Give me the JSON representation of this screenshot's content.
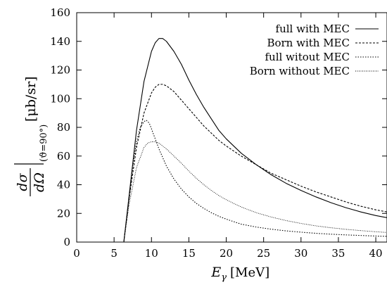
{
  "chart_data": {
    "type": "line",
    "xlabel": {
      "symbol": "E",
      "subscript": "γ",
      "unit": "[MeV]"
    },
    "ylabel": {
      "numerator": "dσ",
      "denominator": "dΩ",
      "subscript": "(ϑ=90°)",
      "unit": "[μb/sr]"
    },
    "xlim": [
      0,
      41.5
    ],
    "ylim": [
      0,
      160
    ],
    "xticks": [
      "0",
      "5",
      "10",
      "15",
      "20",
      "25",
      "30",
      "35",
      "40"
    ],
    "yticks": [
      "0",
      "20",
      "40",
      "60",
      "80",
      "100",
      "120",
      "140",
      "160"
    ],
    "grid": false,
    "legend_position": "top-right",
    "series": [
      {
        "name": "full with MEC",
        "style": "solid",
        "x": [
          6.3,
          7,
          8,
          9,
          10,
          10.5,
          11,
          11.5,
          12,
          13,
          14,
          15,
          16,
          17,
          18,
          19,
          20,
          22,
          24,
          26,
          28,
          30,
          32,
          34,
          36,
          38,
          40,
          41.5
        ],
        "y": [
          0,
          32,
          78,
          112,
          133,
          139,
          142,
          142,
          140,
          133,
          124,
          113,
          103,
          94,
          86,
          78,
          72,
          62,
          54,
          47,
          41,
          36,
          31.5,
          27.5,
          24,
          21,
          18.5,
          17
        ]
      },
      {
        "name": "Born with MEC",
        "style": "dashed",
        "x": [
          6.3,
          7,
          8,
          9,
          10,
          10.5,
          11,
          11.5,
          12,
          13,
          14,
          15,
          16,
          17,
          18,
          19,
          20,
          22,
          24,
          26,
          28,
          30,
          32,
          34,
          36,
          38,
          40,
          41.5
        ],
        "y": [
          0,
          30,
          66,
          90,
          104,
          108,
          110,
          110,
          109,
          105,
          99,
          93,
          87,
          81,
          76,
          71,
          67,
          60,
          54,
          48,
          43.5,
          39,
          35,
          31.5,
          28,
          25,
          22.5,
          21
        ]
      },
      {
        "name": "full witout MEC",
        "style": "dotted",
        "x": [
          6.3,
          7,
          7.5,
          8,
          8.5,
          9,
          9.3,
          9.7,
          10,
          10.5,
          11,
          12,
          13,
          14,
          15,
          16,
          17,
          18,
          19,
          20,
          22,
          24,
          26,
          28,
          30,
          32,
          34,
          36,
          38,
          40,
          41.5
        ],
        "y": [
          0,
          30,
          53,
          70,
          80,
          84,
          85,
          83,
          79,
          72,
          65,
          53,
          44,
          37,
          31.5,
          27,
          23.5,
          20.5,
          18,
          16,
          12.5,
          10.5,
          9,
          7.8,
          6.9,
          6.1,
          5.5,
          5,
          4.6,
          4.2,
          4
        ]
      },
      {
        "name": "Born without MEC",
        "style": "fine-dotted",
        "x": [
          6.3,
          7,
          8,
          9,
          9.5,
          10,
          10.5,
          11,
          12,
          13,
          14,
          15,
          16,
          17,
          18,
          19,
          20,
          22,
          24,
          26,
          28,
          30,
          32,
          34,
          36,
          38,
          40,
          41.5
        ],
        "y": [
          0,
          26,
          52,
          66,
          69,
          70,
          70,
          69,
          65,
          60,
          55,
          49.5,
          44.5,
          40,
          36,
          32.5,
          29.5,
          24.5,
          20.5,
          17.5,
          15,
          13,
          11.3,
          10,
          8.9,
          8,
          7.2,
          6.7
        ]
      }
    ]
  }
}
